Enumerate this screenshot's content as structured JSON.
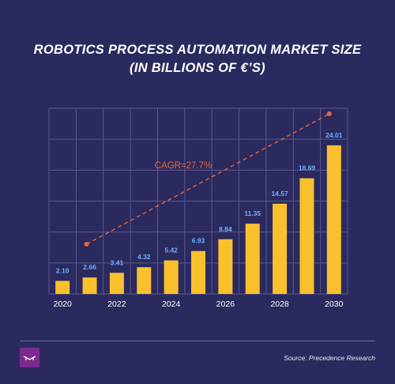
{
  "title_line1": "ROBOTICS PROCESS AUTOMATION MARKET SIZE",
  "title_line2": "(IN BILLIONS OF €’S)",
  "source": "Source: Precedence Research",
  "colors": {
    "background": "#2b2a5e",
    "bar": "#fbc02d",
    "grid": "#5a5990",
    "value_label": "#6fb3ff",
    "trend": "#e8663a"
  },
  "chart_data": {
    "type": "bar",
    "title": "ROBOTICS PROCESS AUTOMATION MARKET SIZE (IN BILLIONS OF €’S)",
    "categories": [
      "2020",
      "2021",
      "2022",
      "2023",
      "2024",
      "2025",
      "2026",
      "2027",
      "2028",
      "2029",
      "2030"
    ],
    "tick_labels": [
      "2020",
      "2022",
      "2024",
      "2026",
      "2028",
      "2030"
    ],
    "values": [
      2.1,
      2.66,
      3.41,
      4.32,
      5.42,
      6.93,
      8.84,
      11.35,
      14.57,
      18.69,
      24.01
    ],
    "value_labels": [
      "2.10",
      "2.66",
      "3.41",
      "4.32",
      "5.42",
      "6.93",
      "8.84",
      "11.35",
      "14.57",
      "18.69",
      "24.01"
    ],
    "ylim": [
      0,
      30
    ],
    "grid": true,
    "annotation": "CAGR=27.7%",
    "trend_line": {
      "style": "dashed",
      "from_category": "2021",
      "to_category": "2030"
    }
  }
}
